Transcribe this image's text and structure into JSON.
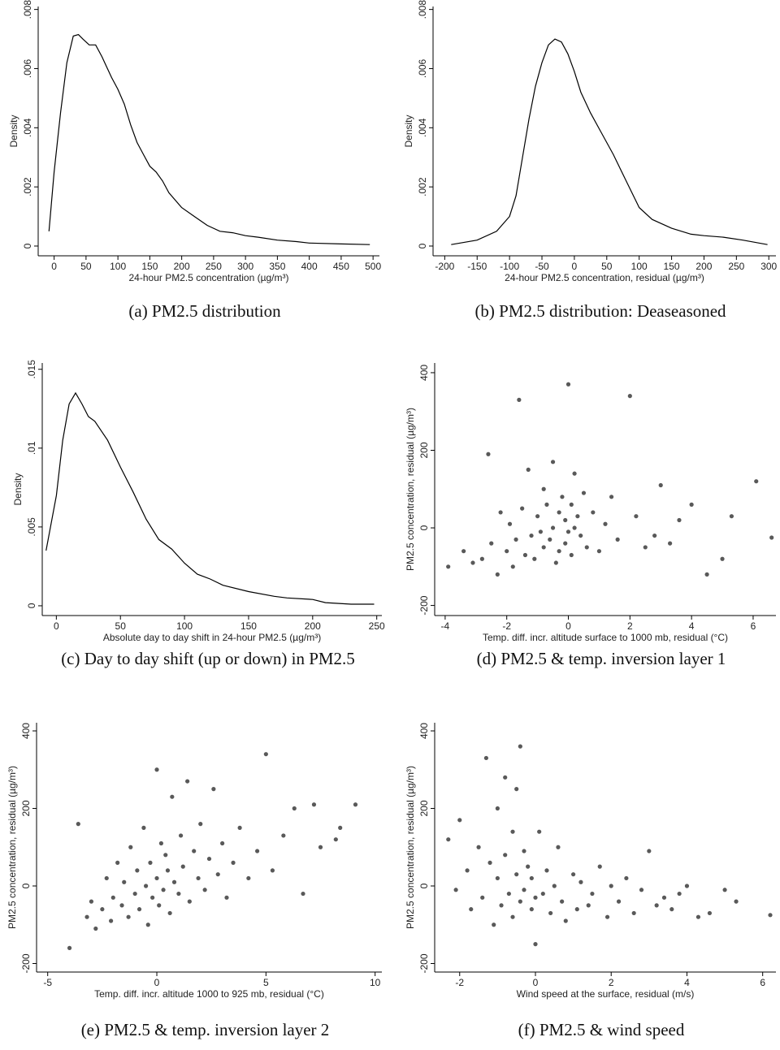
{
  "chart_data": [
    {
      "type": "line",
      "caption": "(a) PM2.5 distribution",
      "x_label": "24-hour PM2.5 concentration (µg/m³)",
      "y_label": "Density",
      "color": "#000000",
      "x": [
        -8,
        0,
        10,
        20,
        30,
        38,
        45,
        55,
        65,
        75,
        90,
        100,
        110,
        120,
        130,
        140,
        150,
        160,
        170,
        180,
        200,
        220,
        240,
        260,
        280,
        300,
        320,
        350,
        380,
        400,
        450,
        495
      ],
      "values": [
        0.0005,
        0.0025,
        0.0045,
        0.0062,
        0.0071,
        0.00715,
        0.007,
        0.0068,
        0.0068,
        0.0064,
        0.0057,
        0.0053,
        0.0048,
        0.0041,
        0.0035,
        0.0031,
        0.0027,
        0.0025,
        0.0022,
        0.0018,
        0.0013,
        0.001,
        0.0007,
        0.0005,
        0.00045,
        0.00035,
        0.0003,
        0.0002,
        0.00015,
        0.0001,
        7e-05,
        5e-05
      ],
      "xlim": [
        -25,
        510
      ],
      "ylim": [
        -0.00033,
        0.0081
      ],
      "xticks": [
        0,
        50,
        100,
        150,
        200,
        250,
        300,
        350,
        400,
        450,
        500
      ],
      "yticks": [
        0,
        {
          "value": 0.002,
          "label": ".002"
        },
        {
          "value": 0.004,
          "label": ".004"
        },
        {
          "value": 0.006,
          "label": ".006"
        },
        {
          "value": 0.008,
          "label": ".008"
        }
      ]
    },
    {
      "type": "line",
      "caption": "(b) PM2.5 distribution: Deaseasoned",
      "x_label": "24-hour PM2.5 concentration, residual (µg/m³)",
      "y_label": "Density",
      "color": "#000000",
      "x": [
        -190,
        -150,
        -120,
        -100,
        -90,
        -80,
        -70,
        -60,
        -50,
        -40,
        -30,
        -20,
        -10,
        0,
        10,
        25,
        40,
        60,
        80,
        100,
        120,
        150,
        180,
        200,
        230,
        260,
        298
      ],
      "values": [
        5e-05,
        0.0002,
        0.0005,
        0.001,
        0.0017,
        0.003,
        0.0043,
        0.0054,
        0.0062,
        0.0068,
        0.007,
        0.0069,
        0.0065,
        0.0059,
        0.0052,
        0.0045,
        0.0039,
        0.0031,
        0.0022,
        0.0013,
        0.0009,
        0.0006,
        0.0004,
        0.00035,
        0.0003,
        0.0002,
        5e-05
      ],
      "xlim": [
        -218,
        311
      ],
      "ylim": [
        -0.00033,
        0.0081
      ],
      "xticks": [
        -200,
        -150,
        -100,
        -50,
        0,
        50,
        100,
        150,
        200,
        250,
        300
      ],
      "yticks": [
        0,
        {
          "value": 0.002,
          "label": ".002"
        },
        {
          "value": 0.004,
          "label": ".004"
        },
        {
          "value": 0.006,
          "label": ".006"
        },
        {
          "value": 0.008,
          "label": ".008"
        }
      ]
    },
    {
      "type": "line",
      "caption": "(c) Day to day shift (up or down) in PM2.5",
      "x_label": "Absolute day to day shift in 24-hour PM2.5 (µg/m³)",
      "y_label": "Density",
      "color": "#000000",
      "x": [
        -8,
        0,
        5,
        10,
        15,
        20,
        25,
        30,
        40,
        50,
        60,
        70,
        80,
        90,
        100,
        110,
        120,
        130,
        150,
        170,
        180,
        200,
        210,
        230,
        248
      ],
      "values": [
        0.0035,
        0.007,
        0.0105,
        0.0128,
        0.0135,
        0.0128,
        0.012,
        0.0117,
        0.0105,
        0.0088,
        0.0072,
        0.0055,
        0.0042,
        0.0036,
        0.0027,
        0.002,
        0.0017,
        0.0013,
        0.0009,
        0.0006,
        0.0005,
        0.0004,
        0.0002,
        0.0001,
        0.0001
      ],
      "xlim": [
        -11,
        254
      ],
      "ylim": [
        -0.00062,
        0.0154
      ],
      "xticks": [
        0,
        50,
        100,
        150,
        200,
        250
      ],
      "yticks": [
        0,
        {
          "value": 0.005,
          "label": ".005"
        },
        {
          "value": 0.01,
          "label": ".01"
        },
        {
          "value": 0.015,
          "label": ".015"
        }
      ]
    },
    {
      "type": "scatter",
      "caption": "(d) PM2.5 & temp. inversion layer 1",
      "x_label": "Temp. diff. incr. altitude surface to 1000 mb, residual (°C)",
      "y_label": "PM2.5 concentration, residual (µg/m³)",
      "color": "#595959",
      "x": [
        -3.9,
        -3.4,
        -3.1,
        -2.8,
        -2.6,
        -2.5,
        -2.3,
        -2.2,
        -2.0,
        -1.9,
        -1.8,
        -1.7,
        -1.5,
        -1.4,
        -1.3,
        -1.2,
        -1.1,
        -1.0,
        -0.9,
        -0.8,
        -0.8,
        -0.7,
        -0.6,
        -0.5,
        -0.5,
        -0.4,
        -0.3,
        -0.3,
        -0.2,
        -0.1,
        -0.1,
        0,
        0,
        0.1,
        0.1,
        0.2,
        0.2,
        0.3,
        0.4,
        0.5,
        0.6,
        0.8,
        1.0,
        1.2,
        1.4,
        1.6,
        2.0,
        2.2,
        2.5,
        2.8,
        3.0,
        3.3,
        3.6,
        4.0,
        4.5,
        5.0,
        5.3,
        6.1,
        6.6,
        -1.6
      ],
      "y": [
        -100,
        -60,
        -90,
        -80,
        190,
        -40,
        -120,
        40,
        -60,
        10,
        -100,
        -30,
        50,
        -70,
        150,
        -20,
        -80,
        30,
        -10,
        -50,
        100,
        60,
        -30,
        170,
        0,
        -90,
        40,
        -60,
        80,
        20,
        -40,
        -10,
        370,
        60,
        -70,
        140,
        0,
        30,
        -20,
        90,
        -50,
        40,
        -60,
        10,
        80,
        -30,
        340,
        30,
        -50,
        -20,
        110,
        -40,
        20,
        60,
        -120,
        -80,
        30,
        120,
        -25,
        330
      ],
      "xlim": [
        -4.34,
        6.74
      ],
      "ylim": [
        -226,
        425
      ],
      "xticks": [
        -4,
        -2,
        0,
        2,
        4,
        6
      ],
      "yticks": [
        -200,
        0,
        200,
        400
      ]
    },
    {
      "type": "scatter",
      "caption": "(e) PM2.5 & temp. inversion layer 2",
      "x_label": "Temp. diff. incr. altitude 1000 to 925 mb, residual (°C)",
      "y_label": "PM2.5 concentration, residual (µg/m³)",
      "color": "#595959",
      "x": [
        -4,
        -3.6,
        -3.2,
        -3,
        -2.8,
        -2.5,
        -2.3,
        -2.1,
        -2,
        -1.8,
        -1.6,
        -1.5,
        -1.3,
        -1.2,
        -1,
        -0.9,
        -0.8,
        -0.6,
        -0.5,
        -0.4,
        -0.3,
        -0.2,
        0,
        0,
        0.1,
        0.2,
        0.3,
        0.4,
        0.5,
        0.6,
        0.7,
        0.8,
        1,
        1.1,
        1.2,
        1.4,
        1.5,
        1.7,
        1.9,
        2,
        2.2,
        2.4,
        2.6,
        2.8,
        3,
        3.2,
        3.5,
        3.8,
        4.2,
        4.6,
        5,
        5.3,
        5.8,
        6.3,
        6.7,
        7.2,
        7.5,
        8.2,
        8.4,
        9.1
      ],
      "y": [
        -160,
        160,
        -80,
        -40,
        -110,
        -60,
        20,
        -90,
        -30,
        60,
        -50,
        10,
        -80,
        100,
        -20,
        40,
        -60,
        150,
        0,
        -100,
        60,
        -30,
        300,
        20,
        -50,
        110,
        -10,
        80,
        40,
        -70,
        230,
        10,
        -20,
        130,
        50,
        270,
        -40,
        90,
        20,
        160,
        -10,
        70,
        250,
        30,
        110,
        -30,
        60,
        150,
        20,
        90,
        340,
        40,
        130,
        200,
        -20,
        210,
        100,
        120,
        150,
        210
      ],
      "xlim": [
        -5.51,
        10.31
      ],
      "ylim": [
        -222,
        421
      ],
      "xticks": [
        -5,
        0,
        5,
        10
      ],
      "yticks": [
        -200,
        0,
        200,
        400
      ]
    },
    {
      "type": "scatter",
      "caption": "(f) PM2.5 & wind speed",
      "x_label": "Wind speed at the surface, residual (m/s)",
      "y_label": "PM2.5 concentration, residual (µg/m³)",
      "color": "#595959",
      "x": [
        -2.3,
        -2.1,
        -2,
        -1.8,
        -1.7,
        -1.5,
        -1.4,
        -1.3,
        -1.2,
        -1.1,
        -1,
        -1,
        -0.9,
        -0.8,
        -0.8,
        -0.7,
        -0.6,
        -0.6,
        -0.5,
        -0.4,
        -0.4,
        -0.3,
        -0.3,
        -0.2,
        -0.1,
        -0.1,
        0,
        0,
        0.1,
        0.2,
        0.3,
        0.4,
        0.5,
        0.6,
        0.7,
        0.8,
        1,
        1.1,
        1.2,
        1.4,
        1.5,
        1.7,
        1.9,
        2,
        2.2,
        2.4,
        2.6,
        2.8,
        3,
        3.2,
        3.4,
        3.6,
        3.8,
        4,
        4.3,
        4.6,
        5,
        5.3,
        6.2,
        -0.5
      ],
      "y": [
        120,
        -10,
        170,
        40,
        -60,
        100,
        -30,
        330,
        60,
        -100,
        20,
        200,
        -50,
        280,
        80,
        -20,
        140,
        -80,
        30,
        -40,
        360,
        90,
        -10,
        50,
        -60,
        20,
        -150,
        -30,
        140,
        -20,
        40,
        -70,
        0,
        100,
        -40,
        -90,
        30,
        -60,
        10,
        -50,
        -20,
        50,
        -80,
        0,
        -40,
        20,
        -70,
        -10,
        90,
        -50,
        -30,
        -60,
        -20,
        0,
        -80,
        -70,
        -10,
        -40,
        -75,
        250
      ],
      "xlim": [
        -2.66,
        6.35
      ],
      "ylim": [
        -222,
        421
      ],
      "xticks": [
        -2,
        0,
        2,
        4,
        6
      ],
      "yticks": [
        -200,
        0,
        200,
        400
      ]
    }
  ]
}
